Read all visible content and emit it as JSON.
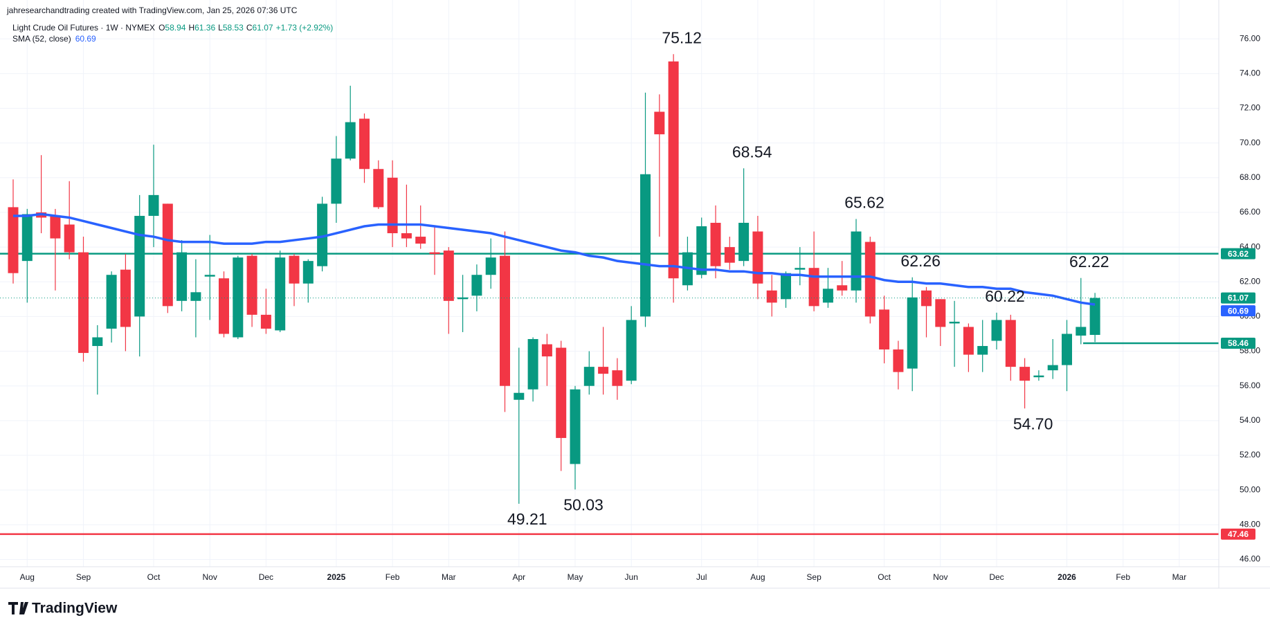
{
  "header": {
    "credit": "jahresearchandtrading created with TradingView.com, Jan 25, 2026 07:36 UTC",
    "brand": "TradingView"
  },
  "chart_data": {
    "type": "candlestick",
    "legend": {
      "symbol": "Light Crude Oil Futures · 1W · NYMEX",
      "quote": [
        {
          "key": "O",
          "value": "58.94"
        },
        {
          "key": "H",
          "value": "61.36"
        },
        {
          "key": "L",
          "value": "58.53"
        },
        {
          "key": "C",
          "value": "61.07"
        }
      ],
      "change": "+1.73 (+2.92%)"
    },
    "categories": [
      null,
      "Aug",
      null,
      null,
      null,
      "Sep",
      null,
      null,
      null,
      null,
      "Oct",
      null,
      null,
      null,
      "Nov",
      null,
      null,
      null,
      "Dec",
      null,
      null,
      null,
      null,
      "2025",
      null,
      null,
      null,
      "Feb",
      null,
      null,
      null,
      "Mar",
      null,
      null,
      null,
      null,
      "Apr",
      null,
      null,
      null,
      "May",
      null,
      null,
      null,
      "Jun",
      null,
      null,
      null,
      null,
      "Jul",
      null,
      null,
      null,
      "Aug",
      null,
      null,
      null,
      "Sep",
      null,
      null,
      null,
      null,
      "Oct",
      null,
      null,
      null,
      "Nov",
      null,
      null,
      null,
      "Dec",
      null,
      null,
      null,
      null,
      "2026",
      null,
      null,
      null,
      "Feb",
      null,
      null,
      null,
      "Mar",
      null,
      null
    ],
    "series": [
      {
        "name": "Light Crude Oil Futures",
        "up_color": "#089981",
        "down_color": "#f23645",
        "open": [
          66.3,
          63.2,
          66.0,
          65.8,
          65.3,
          63.7,
          58.3,
          59.3,
          62.7,
          60.0,
          65.8,
          66.5,
          60.9,
          60.9,
          62.3,
          62.2,
          58.8,
          63.5,
          60.1,
          59.2,
          63.5,
          61.9,
          62.9,
          66.5,
          69.1,
          71.4,
          68.5,
          68.0,
          64.8,
          64.6,
          63.7,
          63.8,
          61.0,
          61.2,
          62.4,
          63.5,
          55.2,
          55.8,
          58.4,
          58.2,
          51.5,
          56.0,
          57.1,
          56.9,
          56.3,
          60.0,
          71.8,
          74.7,
          61.8,
          62.4,
          65.4,
          64.0,
          63.2,
          64.9,
          61.5,
          61.0,
          62.7,
          62.8,
          60.8,
          61.8,
          61.5,
          64.3,
          60.4,
          58.1,
          57.0,
          61.5,
          61.0,
          59.6,
          59.4,
          57.8,
          58.6,
          59.8,
          57.1,
          56.5,
          56.9,
          57.2,
          58.9,
          58.94,
          null,
          null,
          null,
          null,
          null,
          null,
          null,
          null
        ],
        "high": [
          67.9,
          66.2,
          69.3,
          66.2,
          67.8,
          64.6,
          59.5,
          62.6,
          63.6,
          67.0,
          69.9,
          66.5,
          64.4,
          63.3,
          64.7,
          62.6,
          63.5,
          63.6,
          61.6,
          63.8,
          63.6,
          63.3,
          66.9,
          70.4,
          73.3,
          71.7,
          69.0,
          69.0,
          67.6,
          66.4,
          65.2,
          64.0,
          62.4,
          63.0,
          64.5,
          64.9,
          58.2,
          58.8,
          59.0,
          58.6,
          56.0,
          58.0,
          59.4,
          57.6,
          60.6,
          72.9,
          72.8,
          75.12,
          64.6,
          65.7,
          66.4,
          64.6,
          68.54,
          65.8,
          62.4,
          62.6,
          64.0,
          64.9,
          62.8,
          63.2,
          65.62,
          64.6,
          61.2,
          58.6,
          62.26,
          61.7,
          61.0,
          60.9,
          59.6,
          59.8,
          60.22,
          60.1,
          57.6,
          56.9,
          58.7,
          59.8,
          62.22,
          61.36,
          null,
          null,
          null,
          null,
          null,
          null,
          null,
          null
        ],
        "low": [
          61.9,
          60.8,
          64.8,
          61.5,
          63.3,
          57.4,
          55.5,
          58.5,
          58.0,
          57.7,
          64.0,
          60.2,
          60.3,
          58.8,
          59.8,
          58.8,
          58.7,
          59.4,
          59.0,
          59.1,
          60.6,
          60.8,
          62.6,
          65.4,
          69.0,
          67.7,
          66.2,
          64.0,
          64.0,
          63.9,
          62.4,
          59.0,
          59.1,
          60.3,
          61.6,
          54.5,
          49.21,
          55.1,
          56.0,
          51.1,
          50.03,
          55.5,
          55.5,
          55.2,
          56.1,
          59.4,
          64.6,
          60.8,
          61.5,
          62.2,
          62.2,
          62.7,
          62.9,
          61.0,
          60.0,
          60.5,
          61.8,
          60.3,
          60.5,
          61.2,
          60.8,
          59.6,
          57.3,
          55.8,
          55.7,
          58.8,
          58.3,
          57.1,
          56.8,
          56.8,
          58.1,
          56.3,
          54.7,
          56.3,
          56.4,
          55.7,
          58.4,
          58.53,
          null,
          null,
          null,
          null,
          null,
          null,
          null,
          null
        ],
        "close": [
          62.5,
          65.9,
          65.7,
          64.5,
          63.7,
          57.9,
          58.8,
          62.4,
          59.4,
          65.8,
          67.0,
          60.6,
          63.7,
          61.4,
          62.4,
          59.0,
          63.4,
          60.1,
          59.3,
          63.4,
          61.9,
          63.2,
          66.5,
          69.1,
          71.2,
          68.5,
          66.3,
          64.8,
          64.5,
          64.2,
          63.6,
          60.9,
          61.1,
          62.4,
          63.4,
          56.0,
          55.6,
          58.7,
          57.7,
          53.0,
          55.8,
          57.1,
          56.7,
          56.0,
          59.8,
          68.2,
          70.5,
          62.2,
          63.7,
          65.2,
          62.9,
          63.1,
          65.4,
          61.9,
          60.8,
          62.5,
          62.8,
          60.6,
          61.6,
          61.5,
          64.9,
          60.0,
          58.1,
          56.8,
          61.1,
          60.6,
          59.4,
          59.7,
          57.8,
          58.3,
          59.8,
          57.1,
          56.3,
          56.6,
          57.2,
          59.0,
          59.4,
          61.07,
          null,
          null,
          null,
          null,
          null,
          null,
          null,
          null
        ]
      }
    ],
    "sma": {
      "name": "SMA (52, close)",
      "color": "#2962ff",
      "values": [
        65.8,
        65.8,
        65.9,
        65.8,
        65.7,
        65.5,
        65.3,
        65.1,
        64.9,
        64.7,
        64.6,
        64.4,
        64.3,
        64.3,
        64.3,
        64.2,
        64.2,
        64.2,
        64.3,
        64.3,
        64.4,
        64.5,
        64.6,
        64.8,
        65.0,
        65.2,
        65.3,
        65.3,
        65.3,
        65.3,
        65.2,
        65.1,
        65.0,
        64.9,
        64.8,
        64.6,
        64.4,
        64.2,
        64.0,
        63.8,
        63.7,
        63.5,
        63.4,
        63.2,
        63.1,
        63.0,
        62.9,
        62.9,
        62.8,
        62.7,
        62.7,
        62.6,
        62.6,
        62.5,
        62.5,
        62.4,
        62.4,
        62.3,
        62.3,
        62.3,
        62.3,
        62.3,
        62.1,
        62.0,
        62.0,
        61.9,
        61.9,
        61.8,
        61.7,
        61.7,
        61.6,
        61.6,
        61.4,
        61.3,
        61.2,
        61.0,
        60.8,
        60.69,
        null,
        null,
        null,
        null,
        null,
        null,
        null,
        null
      ]
    },
    "levels": [
      {
        "value": 63.62,
        "color": "#089981"
      },
      {
        "value": 58.46,
        "color": "#089981"
      },
      {
        "value": 47.46,
        "color": "#f23645"
      }
    ],
    "annotations": [
      {
        "value": 75.12,
        "label": "75.12"
      },
      {
        "value": 68.54,
        "label": "68.54"
      },
      {
        "value": 65.62,
        "label": "65.62"
      },
      {
        "value": 62.26,
        "label": "62.26"
      },
      {
        "value": 60.22,
        "label": "60.22"
      },
      {
        "value": 62.22,
        "label": "62.22"
      },
      {
        "value": 54.7,
        "label": "54.70"
      },
      {
        "value": 49.21,
        "label": "49.21"
      },
      {
        "value": 50.03,
        "label": "50.03"
      }
    ],
    "ylim": [
      45.58,
      78.24
    ],
    "yticks": [
      {
        "value": 46,
        "label": "46.00"
      },
      {
        "value": 48,
        "label": "48.00"
      },
      {
        "value": 50,
        "label": "50.00"
      },
      {
        "value": 52,
        "label": "52.00"
      },
      {
        "value": 54,
        "label": "54.00"
      },
      {
        "value": 56,
        "label": "56.00"
      },
      {
        "value": 58,
        "label": "58.00"
      },
      {
        "value": 60,
        "label": "60.00"
      },
      {
        "value": 62,
        "label": "62.00"
      },
      {
        "value": 64,
        "label": "64.00"
      },
      {
        "value": 66,
        "label": "66.00"
      },
      {
        "value": 68,
        "label": "68.00"
      },
      {
        "value": 70,
        "label": "70.00"
      },
      {
        "value": 72,
        "label": "72.00"
      },
      {
        "value": 74,
        "label": "74.00"
      },
      {
        "value": 76,
        "label": "76.00"
      }
    ],
    "grid": true
  }
}
